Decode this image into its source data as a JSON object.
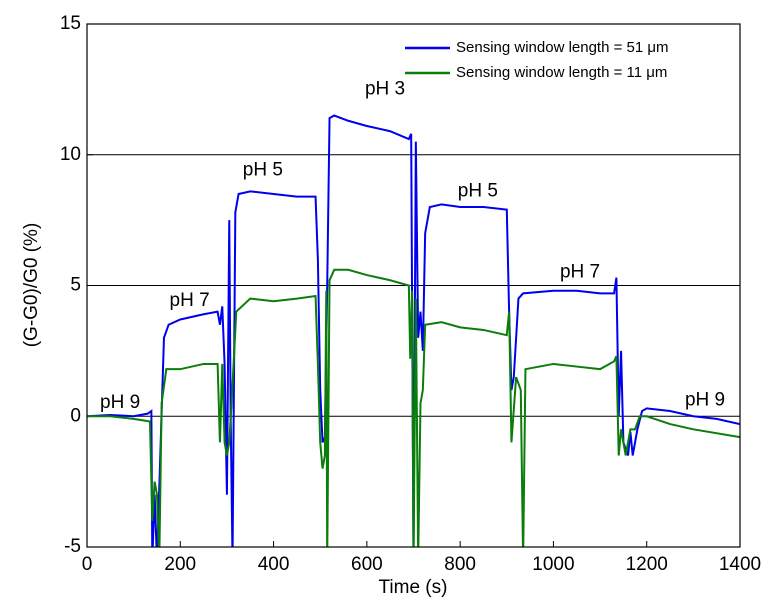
{
  "chart_data": {
    "type": "line",
    "xlabel": "Time (s)",
    "ylabel": "(G-G0)/G0 (%)",
    "xlim": [
      0,
      1400
    ],
    "xticks": [
      0,
      200,
      400,
      600,
      800,
      1000,
      1200,
      1400
    ],
    "ylim": [
      -5,
      15
    ],
    "yticks": [
      -5,
      0,
      5,
      10,
      15
    ],
    "grid": "y",
    "legend": "upper right",
    "series": [
      {
        "name": "Sensing window length = 51 μm",
        "color": "#0000ee",
        "x": [
          0,
          50,
          100,
          130,
          138,
          140,
          145,
          150,
          158,
          165,
          175,
          200,
          250,
          280,
          285,
          290,
          295,
          300,
          305,
          308,
          312,
          318,
          325,
          350,
          400,
          450,
          490,
          495,
          500,
          505,
          510,
          515,
          520,
          530,
          560,
          600,
          650,
          690,
          695,
          700,
          705,
          710,
          715,
          720,
          725,
          735,
          760,
          800,
          850,
          900,
          905,
          910,
          915,
          925,
          935,
          1000,
          1050,
          1100,
          1130,
          1135,
          1140,
          1145,
          1150,
          1160,
          1165,
          1170,
          1180,
          1190,
          1200,
          1250,
          1300,
          1350,
          1400
        ],
        "values": [
          0,
          0.05,
          0,
          0.1,
          0.2,
          -5.5,
          -3,
          -5.5,
          -1,
          3,
          3.5,
          3.7,
          3.9,
          4.0,
          3.5,
          4.2,
          2,
          -3,
          7.5,
          0,
          -5.5,
          7.8,
          8.5,
          8.6,
          8.5,
          8.4,
          8.4,
          6,
          1,
          -1,
          -0.8,
          5,
          11.4,
          11.5,
          11.3,
          11.1,
          10.9,
          10.6,
          10.8,
          -5.5,
          10.5,
          3,
          4,
          2.5,
          7,
          8,
          8.1,
          8.0,
          8.0,
          7.9,
          4,
          1,
          1.5,
          4.5,
          4.7,
          4.8,
          4.8,
          4.7,
          4.7,
          5.3,
          0,
          2.5,
          -1,
          -1.5,
          -0.6,
          -1.5,
          -0.5,
          0.2,
          0.3,
          0.2,
          0,
          -0.1,
          -0.3
        ]
      },
      {
        "name": "Sensing window length = 11 μm",
        "color": "#0a7d0a",
        "x": [
          0,
          50,
          100,
          135,
          140,
          145,
          150,
          155,
          160,
          170,
          200,
          250,
          280,
          285,
          290,
          295,
          300,
          305,
          310,
          320,
          350,
          400,
          450,
          490,
          495,
          500,
          505,
          510,
          513,
          515,
          520,
          530,
          560,
          600,
          650,
          690,
          693,
          697,
          700,
          705,
          710,
          715,
          720,
          725,
          760,
          800,
          850,
          900,
          905,
          910,
          920,
          930,
          935,
          940,
          1000,
          1050,
          1100,
          1130,
          1135,
          1140,
          1145,
          1155,
          1165,
          1175,
          1185,
          1200,
          1250,
          1300,
          1400
        ],
        "values": [
          0,
          0,
          -0.1,
          -0.2,
          -4,
          -2.5,
          -3,
          -5.5,
          0.5,
          1.8,
          1.8,
          2.0,
          2.0,
          -1,
          2,
          -1,
          -1.5,
          -1,
          0.5,
          4,
          4.5,
          4.4,
          4.5,
          4.6,
          2,
          -1,
          -2,
          -1.5,
          4.8,
          -5.5,
          5.2,
          5.6,
          5.6,
          5.4,
          5.2,
          5.0,
          2.2,
          4.8,
          -5.5,
          4.5,
          -5.5,
          0.5,
          1,
          3.5,
          3.6,
          3.4,
          3.3,
          3.1,
          4,
          -1,
          1.5,
          1,
          -5.5,
          1.8,
          2.0,
          1.9,
          1.8,
          2.1,
          2.3,
          -1.5,
          -0.5,
          -1.5,
          -0.5,
          -0.5,
          0,
          0,
          -0.3,
          -0.5,
          -0.8
        ]
      }
    ],
    "annotations": [
      {
        "text": "pH 9",
        "x": 71,
        "y": 0.5
      },
      {
        "text": "pH 7",
        "x": 220,
        "y": 4.4
      },
      {
        "text": "pH 5",
        "x": 377,
        "y": 9.4
      },
      {
        "text": "pH 3",
        "x": 639,
        "y": 12.5
      },
      {
        "text": "pH 5",
        "x": 838,
        "y": 8.6
      },
      {
        "text": "pH 7",
        "x": 1057,
        "y": 5.5
      },
      {
        "text": "pH 9",
        "x": 1325,
        "y": 0.6
      }
    ]
  }
}
